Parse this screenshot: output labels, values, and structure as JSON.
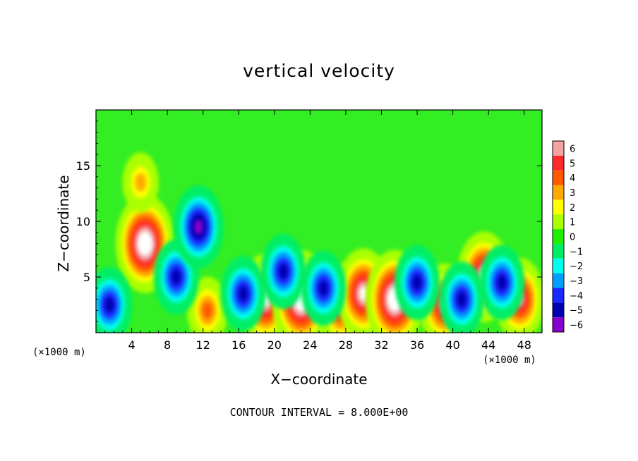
{
  "chart_data": {
    "type": "heatmap",
    "title": "vertical velocity",
    "xlabel": "X−coordinate",
    "ylabel": "Z−coordinate",
    "x_unit": "(×1000 m)",
    "y_unit": "(×1000 m)",
    "footer": "CONTOUR INTERVAL = 8.000E+00",
    "xlim": [
      0,
      50
    ],
    "ylim": [
      0,
      20
    ],
    "x_ticks": [
      4,
      8,
      12,
      16,
      20,
      24,
      28,
      32,
      36,
      40,
      44,
      48
    ],
    "y_ticks": [
      5,
      10,
      15
    ],
    "colorbar": {
      "ticks": [
        6,
        5,
        4,
        3,
        2,
        1,
        0,
        -1,
        -2,
        -3,
        -4,
        -5,
        -6
      ],
      "tick_labels": [
        "6",
        "5",
        "4",
        "3",
        "2",
        "1",
        "0",
        "−1",
        "−2",
        "−3",
        "−4",
        "−5",
        "−6"
      ],
      "colors": [
        "#f2a3a3",
        "#ff2a2a",
        "#ff5a00",
        "#ffaa00",
        "#ffff00",
        "#aaff00",
        "#22ee00",
        "#00ee66",
        "#00ffee",
        "#00a0ff",
        "#1a2aff",
        "#0000b0",
        "#8800cc"
      ]
    },
    "features": [
      {
        "x": 5.5,
        "z": 8.0,
        "peak": 8
      },
      {
        "x": 5.0,
        "z": 13.5,
        "peak": 3
      },
      {
        "x": 12.5,
        "z": 2.0,
        "peak": 4
      },
      {
        "x": 19.0,
        "z": 3.0,
        "peak": 7
      },
      {
        "x": 23.0,
        "z": 3.0,
        "peak": 8
      },
      {
        "x": 27.5,
        "z": 2.5,
        "peak": 6
      },
      {
        "x": 30.0,
        "z": 3.5,
        "peak": 7
      },
      {
        "x": 33.5,
        "z": 3.0,
        "peak": 8
      },
      {
        "x": 39.0,
        "z": 2.5,
        "peak": 6
      },
      {
        "x": 43.5,
        "z": 5.0,
        "peak": 7
      },
      {
        "x": 47.5,
        "z": 3.0,
        "peak": 6
      },
      {
        "x": 1.5,
        "z": 2.5,
        "peak": -5
      },
      {
        "x": 9.0,
        "z": 5.0,
        "peak": -5
      },
      {
        "x": 11.5,
        "z": 9.5,
        "peak": -6
      },
      {
        "x": 16.5,
        "z": 3.5,
        "peak": -5
      },
      {
        "x": 21.0,
        "z": 5.5,
        "peak": -5
      },
      {
        "x": 25.5,
        "z": 4.0,
        "peak": -5
      },
      {
        "x": 36.0,
        "z": 4.5,
        "peak": -5
      },
      {
        "x": 41.0,
        "z": 3.0,
        "peak": -5
      },
      {
        "x": 45.5,
        "z": 4.5,
        "peak": -5
      }
    ]
  }
}
